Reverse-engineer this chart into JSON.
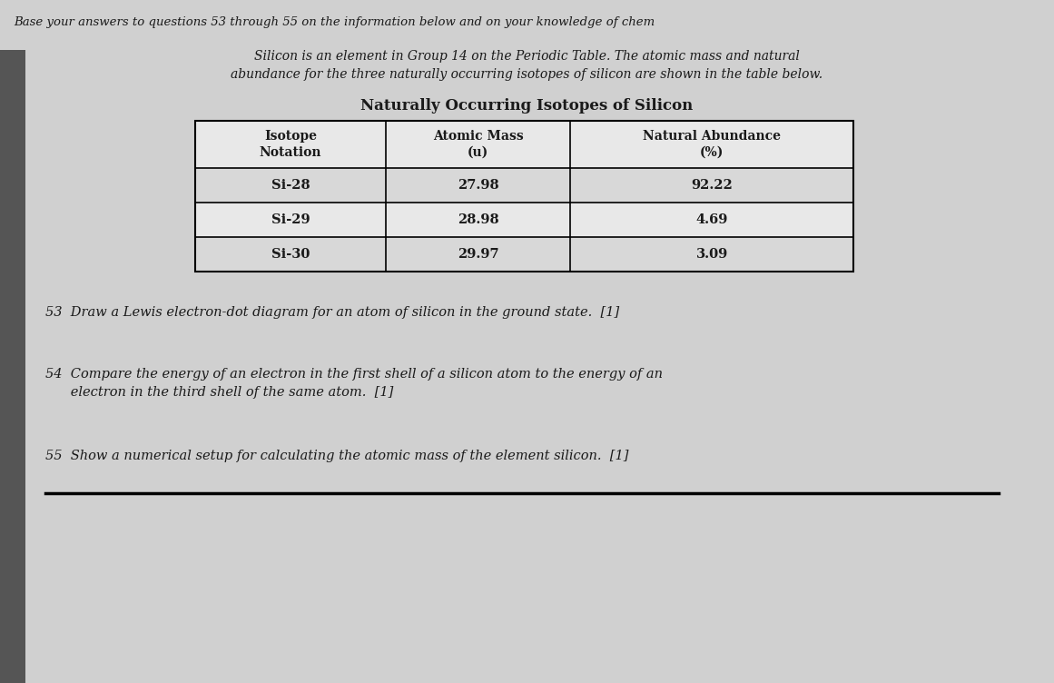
{
  "background_color": "#d0d0d0",
  "top_text": "Base your answers to questions 53 through 55 on the information below and on your knowledge of chem",
  "intro_line1": "Silicon is an element in Group 14 on the Periodic Table. The atomic mass and natural",
  "intro_line2": "abundance for the three naturally occurring isotopes of silicon are shown in the table below.",
  "table_title": "Naturally Occurring Isotopes of Silicon",
  "col_headers": [
    [
      "Isotope",
      "Notation"
    ],
    [
      "Atomic Mass",
      "(u)"
    ],
    [
      "Natural Abundance",
      "(%)"
    ]
  ],
  "table_data": [
    [
      "Si-28",
      "27.98",
      "92.22"
    ],
    [
      "Si-29",
      "28.98",
      "4.69"
    ],
    [
      "Si-30",
      "29.97",
      "3.09"
    ]
  ],
  "q53": "53  Draw a Lewis electron-dot diagram for an atom of silicon in the ground state.  [1]",
  "q54_line1": "54  Compare the energy of an electron in the first shell of a silicon atom to the energy of an",
  "q54_line2": "      electron in the third shell of the same atom.  [1]",
  "q55": "55  Show a numerical setup for calculating the atomic mass of the element silicon.  [1]",
  "finger_color": "#555555",
  "text_color": "#1a1a1a",
  "table_bg": "#e8e8e8",
  "table_alt_row": "#d8d8d8"
}
